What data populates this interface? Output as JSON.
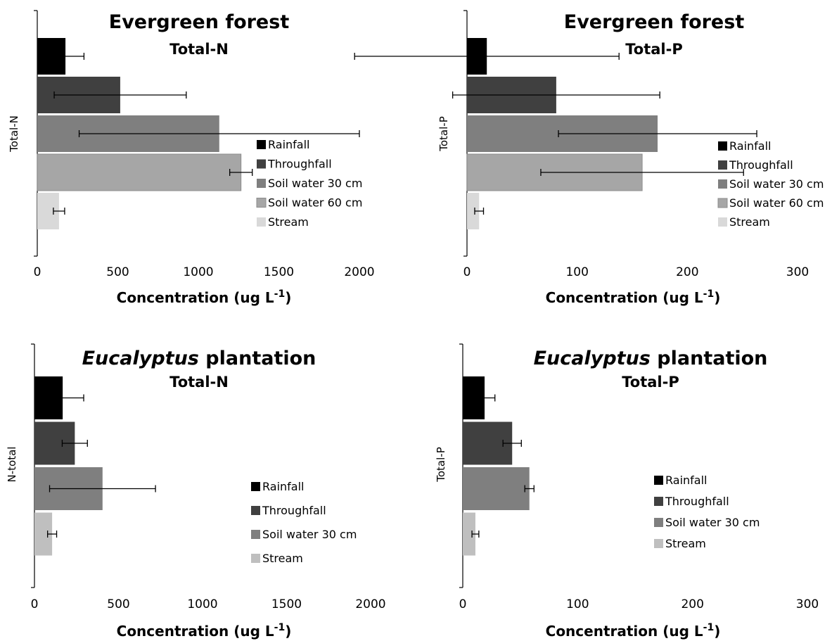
{
  "chart_data": [
    {
      "type": "bar",
      "orientation": "horizontal",
      "title": "Evergreen forest",
      "subtitle": "Total-N",
      "xlabel": "Concentration (ug L-1)",
      "ylabel": "Total-N",
      "xlim": [
        0,
        2000
      ],
      "xticks": [
        "0",
        "500",
        "1000",
        "1500",
        "2000"
      ],
      "legend_position": "right",
      "categories": [
        "Rainfall",
        "Throughfall",
        "Soil water 30 cm",
        "Soil water 60 cm",
        "Stream"
      ],
      "values": [
        175,
        515,
        1130,
        1265,
        135
      ],
      "errors": [
        115,
        410,
        870,
        70,
        35
      ],
      "colors": [
        "#000000",
        "#404040",
        "#7f7f7f",
        "#a6a6a6",
        "#d9d9d9"
      ]
    },
    {
      "type": "bar",
      "orientation": "horizontal",
      "title": "Evergreen forest",
      "subtitle": "Total-P",
      "xlabel": "Concentration (ug L-1)",
      "ylabel": "Total-P",
      "xlim": [
        0,
        300
      ],
      "xticks": [
        "0",
        "100",
        "200",
        "300"
      ],
      "legend_position": "right",
      "categories": [
        "Rainfall",
        "Throughfall",
        "Soil water 30 cm",
        "Soil water 60 cm",
        "Stream"
      ],
      "values": [
        18,
        81,
        173,
        159,
        11
      ],
      "errors": [
        120,
        94,
        90,
        92,
        4
      ],
      "colors": [
        "#000000",
        "#404040",
        "#7f7f7f",
        "#a6a6a6",
        "#d9d9d9"
      ]
    },
    {
      "type": "bar",
      "orientation": "horizontal",
      "title": "Eucalyptus plantation",
      "subtitle": "Total-N",
      "xlabel": "Concentration (ug L-1)",
      "ylabel": "N-total",
      "xlim": [
        0,
        2000
      ],
      "xticks": [
        "0",
        "500",
        "1000",
        "1500",
        "2000"
      ],
      "legend_position": "right",
      "categories": [
        "Rainfall",
        "Throughfall",
        "Soil water 30 cm",
        "Stream"
      ],
      "values": [
        168,
        240,
        405,
        105
      ],
      "errors": [
        125,
        75,
        315,
        27
      ],
      "colors": [
        "#000000",
        "#404040",
        "#7f7f7f",
        "#bfbfbf"
      ]
    },
    {
      "type": "bar",
      "orientation": "horizontal",
      "title": "Eucalyptus plantation",
      "subtitle": "Total-P",
      "xlabel": "Concentration (ug L-1)",
      "ylabel": "Total-P",
      "xlim": [
        0,
        300
      ],
      "xticks": [
        "0",
        "100",
        "200",
        "300"
      ],
      "legend_position": "right",
      "categories": [
        "Rainfall",
        "Throughfall",
        "Soil water 30 cm",
        "Stream"
      ],
      "values": [
        19,
        43,
        58,
        11
      ],
      "errors": [
        9,
        8,
        4,
        3
      ],
      "colors": [
        "#000000",
        "#404040",
        "#7f7f7f",
        "#bfbfbf"
      ]
    }
  ]
}
